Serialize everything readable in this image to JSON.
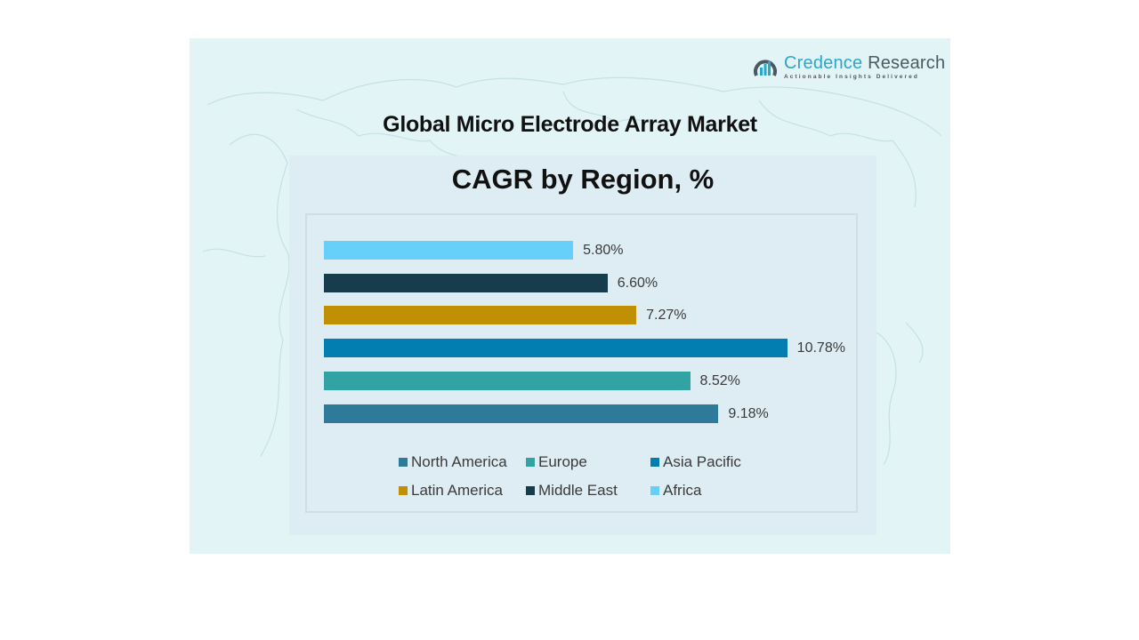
{
  "brand": {
    "name_part1": "Credence",
    "name_part2": " Research",
    "tagline": "Actionable Insights Delivered",
    "logo_icon": "bar-chart-in-ring-icon"
  },
  "header": {
    "title": "Global Micro Electrode Array Market"
  },
  "chart": {
    "subtitle": "CAGR by Region, %"
  },
  "colors": {
    "north_america": "#2e7a9b",
    "europe": "#31a3a3",
    "asia_pacific": "#027fb0",
    "latin_america": "#c18f02",
    "middle_east": "#173d4d",
    "africa": "#66d0fb",
    "card_bg": "#e2f4f5",
    "panel_bg": "#deedf4"
  },
  "chart_data": {
    "type": "bar",
    "orientation": "horizontal",
    "title": "CAGR by Region, %",
    "suptitle": "Global Micro Electrode Array Market",
    "categories": [
      "Africa",
      "Middle East",
      "Latin America",
      "Asia Pacific",
      "Europe",
      "North America"
    ],
    "values": [
      5.8,
      6.6,
      7.27,
      10.78,
      8.52,
      9.18
    ],
    "data_labels": [
      "5.80%",
      "6.60%",
      "7.27%",
      "10.78%",
      "8.52%",
      "9.18%"
    ],
    "unit": "%",
    "xlabel": "",
    "ylabel": "",
    "grid": false,
    "axis_visible": false,
    "legend_position": "bottom",
    "legend": [
      "North America",
      "Europe",
      "Asia Pacific",
      "Latin America",
      "Middle East",
      "Africa"
    ]
  },
  "bars": [
    {
      "label": "5.80%",
      "region": "Africa",
      "color": "#66d0fb"
    },
    {
      "label": "6.60%",
      "region": "Middle East",
      "color": "#173d4d"
    },
    {
      "label": "7.27%",
      "region": "Latin America",
      "color": "#c18f02"
    },
    {
      "label": "10.78%",
      "region": "Asia Pacific",
      "color": "#027fb0"
    },
    {
      "label": "8.52%",
      "region": "Europe",
      "color": "#31a3a3"
    },
    {
      "label": "9.18%",
      "region": "North America",
      "color": "#2e7a9b"
    }
  ],
  "legend": [
    {
      "label": "North America",
      "color": "#2e7a9b"
    },
    {
      "label": "Europe",
      "color": "#31a3a3"
    },
    {
      "label": "Asia Pacific",
      "color": "#027fb0"
    },
    {
      "label": "Latin America",
      "color": "#c18f02"
    },
    {
      "label": "Middle East",
      "color": "#173d4d"
    },
    {
      "label": "Africa",
      "color": "#66d0fb"
    }
  ]
}
